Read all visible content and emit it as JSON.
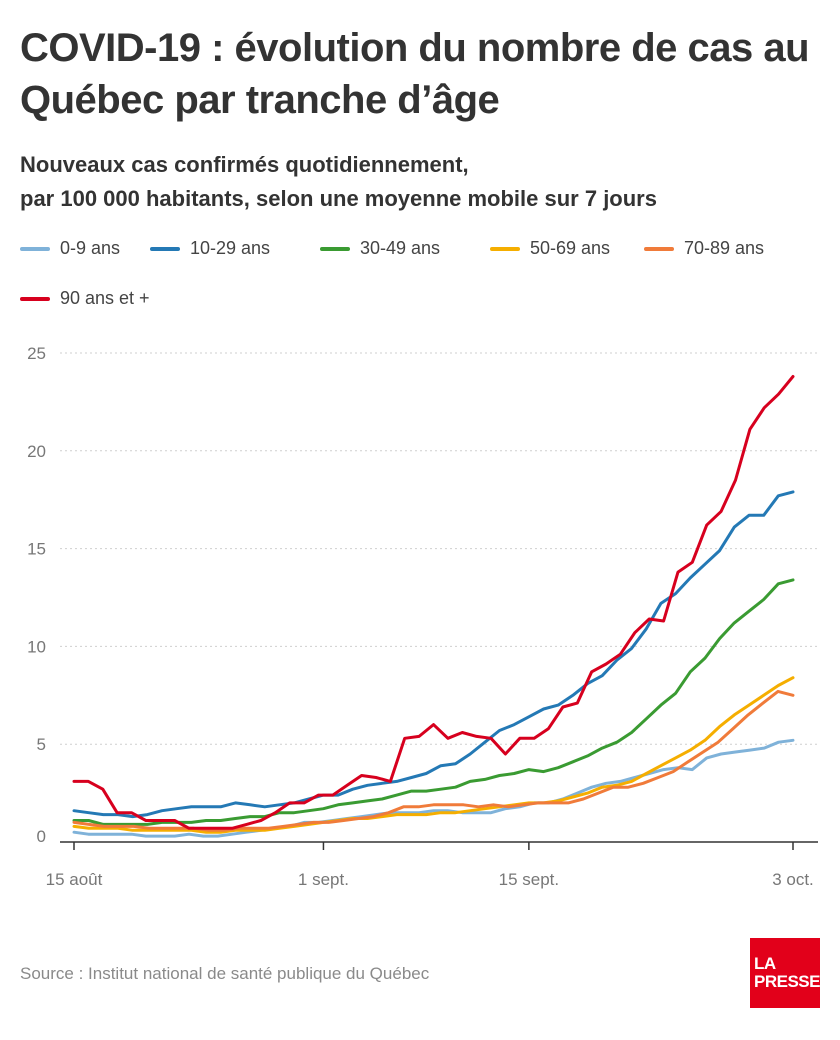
{
  "header": {
    "title": "COVID-19 : évolution du nombre de cas au Québec par tranche d’âge",
    "subtitle_line1": "Nouveaux cas confirmés quotidiennement,",
    "subtitle_line2": "par 100 000 habitants, selon une moyenne mobile sur 7 jours"
  },
  "footer": {
    "source": "Source : Institut national de santé publique du Québec",
    "logo_line1": "LA",
    "logo_line2": "PRESSE"
  },
  "chart_data": {
    "type": "line",
    "title": "COVID-19 : évolution du nombre de cas au Québec par tranche d’âge",
    "subtitle": "Nouveaux cas confirmés quotidiennement, par 100 000 habitants, selon une moyenne mobile sur 7 jours",
    "xlabel": "",
    "ylabel": "",
    "x_start": "2020-08-15",
    "ylim": [
      0,
      25
    ],
    "yticks": [
      0,
      5,
      10,
      15,
      20,
      25
    ],
    "xticks": [
      {
        "date": "2020-08-15",
        "label": "15 août"
      },
      {
        "date": "2020-09-01",
        "label": "1 sept."
      },
      {
        "date": "2020-09-15",
        "label": "15 sept."
      },
      {
        "date": "2020-10-03",
        "label": "3 oct."
      }
    ],
    "grid": "horizontal",
    "legend_position": "top",
    "series": [
      {
        "name": "0-9 ans",
        "color": "#7fb2d9",
        "values": [
          0.5,
          0.4,
          0.4,
          0.4,
          0.4,
          0.3,
          0.3,
          0.3,
          0.4,
          0.3,
          0.3,
          0.4,
          0.5,
          0.6,
          0.7,
          0.8,
          1.0,
          1.0,
          1.1,
          1.2,
          1.3,
          1.4,
          1.5,
          1.5,
          1.5,
          1.6,
          1.6,
          1.5,
          1.5,
          1.5,
          1.7,
          1.8,
          2.0,
          2.0,
          2.2,
          2.5,
          2.8,
          3.0,
          3.1,
          3.3,
          3.5,
          3.7,
          3.8,
          3.7,
          4.3,
          4.5,
          4.6,
          4.7,
          4.8,
          5.1,
          5.2
        ]
      },
      {
        "name": "10-29 ans",
        "color": "#2479b5",
        "values": [
          1.6,
          1.5,
          1.4,
          1.4,
          1.3,
          1.4,
          1.6,
          1.7,
          1.8,
          1.8,
          1.8,
          2.0,
          1.9,
          1.8,
          1.9,
          2.0,
          2.2,
          2.4,
          2.4,
          2.7,
          2.9,
          3.0,
          3.1,
          3.3,
          3.5,
          3.9,
          4.0,
          4.5,
          5.1,
          5.7,
          6.0,
          6.4,
          6.8,
          7.0,
          7.5,
          8.1,
          8.5,
          9.3,
          9.9,
          10.9,
          12.2,
          12.7,
          13.5,
          14.2,
          14.9,
          16.1,
          16.7,
          16.7,
          17.7,
          17.9
        ]
      },
      {
        "name": "30-49 ans",
        "color": "#3a9b32",
        "values": [
          1.1,
          1.1,
          0.9,
          0.9,
          0.9,
          0.9,
          1.0,
          1.0,
          1.0,
          1.1,
          1.1,
          1.2,
          1.3,
          1.3,
          1.5,
          1.5,
          1.6,
          1.7,
          1.9,
          2.0,
          2.1,
          2.2,
          2.4,
          2.6,
          2.6,
          2.7,
          2.8,
          3.1,
          3.2,
          3.4,
          3.5,
          3.7,
          3.6,
          3.8,
          4.1,
          4.4,
          4.8,
          5.1,
          5.6,
          6.3,
          7.0,
          7.6,
          8.7,
          9.4,
          10.4,
          11.2,
          11.8,
          12.4,
          13.2,
          13.4
        ]
      },
      {
        "name": "50-69 ans",
        "color": "#f5ae00",
        "values": [
          0.8,
          0.7,
          0.7,
          0.7,
          0.6,
          0.6,
          0.6,
          0.6,
          0.6,
          0.5,
          0.5,
          0.6,
          0.6,
          0.6,
          0.7,
          0.8,
          0.9,
          1.0,
          1.1,
          1.2,
          1.2,
          1.3,
          1.4,
          1.4,
          1.4,
          1.5,
          1.5,
          1.6,
          1.7,
          1.8,
          1.9,
          2.0,
          2.0,
          2.1,
          2.3,
          2.5,
          2.8,
          2.9,
          3.1,
          3.5,
          3.9,
          4.3,
          4.7,
          5.2,
          5.9,
          6.5,
          7.0,
          7.5,
          8.0,
          8.4
        ]
      },
      {
        "name": "70-89 ans",
        "color": "#f07b3a",
        "values": [
          1.0,
          0.9,
          0.8,
          0.8,
          0.8,
          0.7,
          0.7,
          0.7,
          0.7,
          0.6,
          0.6,
          0.7,
          0.7,
          0.7,
          0.8,
          0.9,
          1.0,
          1.0,
          1.1,
          1.2,
          1.3,
          1.5,
          1.8,
          1.8,
          1.9,
          1.9,
          1.9,
          1.8,
          1.9,
          1.8,
          1.9,
          2.0,
          2.0,
          2.0,
          2.2,
          2.5,
          2.8,
          2.8,
          3.0,
          3.3,
          3.6,
          4.1,
          4.6,
          5.1,
          5.8,
          6.5,
          7.1,
          7.7,
          7.5
        ]
      },
      {
        "name": "90 ans et +",
        "color": "#d7001e",
        "values": [
          3.1,
          3.1,
          2.7,
          1.5,
          1.5,
          1.1,
          1.1,
          1.1,
          0.7,
          0.7,
          0.7,
          0.7,
          0.9,
          1.1,
          1.5,
          2.0,
          2.0,
          2.4,
          2.4,
          2.9,
          3.4,
          3.3,
          3.1,
          5.3,
          5.4,
          6.0,
          5.3,
          5.6,
          5.4,
          5.3,
          4.5,
          5.3,
          5.3,
          5.8,
          6.9,
          7.1,
          8.7,
          9.1,
          9.6,
          10.7,
          11.4,
          11.3,
          13.8,
          14.3,
          16.2,
          16.9,
          18.5,
          21.1,
          22.2,
          22.9,
          23.8
        ]
      }
    ]
  }
}
